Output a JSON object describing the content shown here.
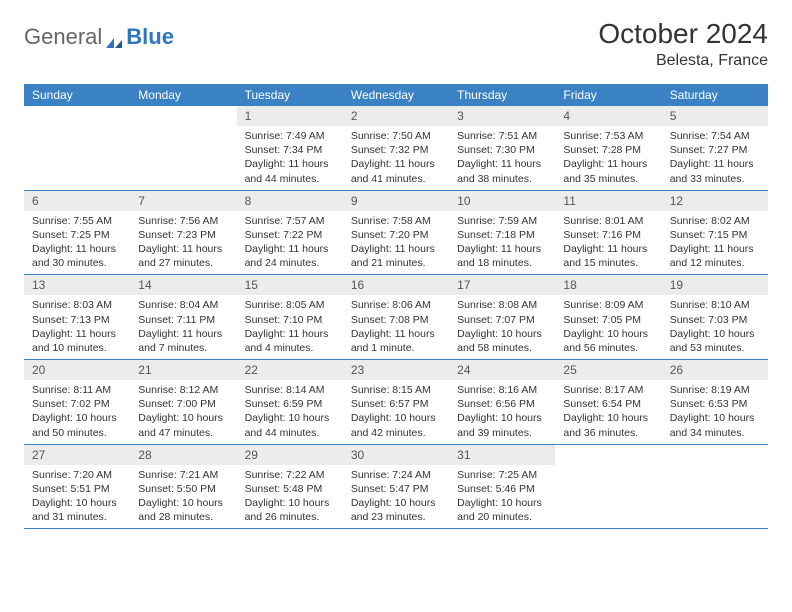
{
  "logo": {
    "text1": "General",
    "text2": "Blue"
  },
  "header": {
    "title": "October 2024",
    "location": "Belesta, France"
  },
  "colors": {
    "header_bar": "#3a82c4",
    "header_text": "#ffffff",
    "daynum_bg": "#ececec",
    "daynum_text": "#555555",
    "body_text": "#333333",
    "logo_gray": "#666666",
    "logo_blue": "#2f77bd",
    "page_bg": "#ffffff"
  },
  "typography": {
    "title_fontsize": 28,
    "subtitle_fontsize": 16,
    "weekday_fontsize": 12,
    "daynum_fontsize": 12,
    "daytext_fontsize": 10.5
  },
  "weekdays": [
    "Sunday",
    "Monday",
    "Tuesday",
    "Wednesday",
    "Thursday",
    "Friday",
    "Saturday"
  ],
  "weeks": [
    [
      null,
      null,
      {
        "n": "1",
        "sr": "Sunrise: 7:49 AM",
        "ss": "Sunset: 7:34 PM",
        "dl": "Daylight: 11 hours and 44 minutes."
      },
      {
        "n": "2",
        "sr": "Sunrise: 7:50 AM",
        "ss": "Sunset: 7:32 PM",
        "dl": "Daylight: 11 hours and 41 minutes."
      },
      {
        "n": "3",
        "sr": "Sunrise: 7:51 AM",
        "ss": "Sunset: 7:30 PM",
        "dl": "Daylight: 11 hours and 38 minutes."
      },
      {
        "n": "4",
        "sr": "Sunrise: 7:53 AM",
        "ss": "Sunset: 7:28 PM",
        "dl": "Daylight: 11 hours and 35 minutes."
      },
      {
        "n": "5",
        "sr": "Sunrise: 7:54 AM",
        "ss": "Sunset: 7:27 PM",
        "dl": "Daylight: 11 hours and 33 minutes."
      }
    ],
    [
      {
        "n": "6",
        "sr": "Sunrise: 7:55 AM",
        "ss": "Sunset: 7:25 PM",
        "dl": "Daylight: 11 hours and 30 minutes."
      },
      {
        "n": "7",
        "sr": "Sunrise: 7:56 AM",
        "ss": "Sunset: 7:23 PM",
        "dl": "Daylight: 11 hours and 27 minutes."
      },
      {
        "n": "8",
        "sr": "Sunrise: 7:57 AM",
        "ss": "Sunset: 7:22 PM",
        "dl": "Daylight: 11 hours and 24 minutes."
      },
      {
        "n": "9",
        "sr": "Sunrise: 7:58 AM",
        "ss": "Sunset: 7:20 PM",
        "dl": "Daylight: 11 hours and 21 minutes."
      },
      {
        "n": "10",
        "sr": "Sunrise: 7:59 AM",
        "ss": "Sunset: 7:18 PM",
        "dl": "Daylight: 11 hours and 18 minutes."
      },
      {
        "n": "11",
        "sr": "Sunrise: 8:01 AM",
        "ss": "Sunset: 7:16 PM",
        "dl": "Daylight: 11 hours and 15 minutes."
      },
      {
        "n": "12",
        "sr": "Sunrise: 8:02 AM",
        "ss": "Sunset: 7:15 PM",
        "dl": "Daylight: 11 hours and 12 minutes."
      }
    ],
    [
      {
        "n": "13",
        "sr": "Sunrise: 8:03 AM",
        "ss": "Sunset: 7:13 PM",
        "dl": "Daylight: 11 hours and 10 minutes."
      },
      {
        "n": "14",
        "sr": "Sunrise: 8:04 AM",
        "ss": "Sunset: 7:11 PM",
        "dl": "Daylight: 11 hours and 7 minutes."
      },
      {
        "n": "15",
        "sr": "Sunrise: 8:05 AM",
        "ss": "Sunset: 7:10 PM",
        "dl": "Daylight: 11 hours and 4 minutes."
      },
      {
        "n": "16",
        "sr": "Sunrise: 8:06 AM",
        "ss": "Sunset: 7:08 PM",
        "dl": "Daylight: 11 hours and 1 minute."
      },
      {
        "n": "17",
        "sr": "Sunrise: 8:08 AM",
        "ss": "Sunset: 7:07 PM",
        "dl": "Daylight: 10 hours and 58 minutes."
      },
      {
        "n": "18",
        "sr": "Sunrise: 8:09 AM",
        "ss": "Sunset: 7:05 PM",
        "dl": "Daylight: 10 hours and 56 minutes."
      },
      {
        "n": "19",
        "sr": "Sunrise: 8:10 AM",
        "ss": "Sunset: 7:03 PM",
        "dl": "Daylight: 10 hours and 53 minutes."
      }
    ],
    [
      {
        "n": "20",
        "sr": "Sunrise: 8:11 AM",
        "ss": "Sunset: 7:02 PM",
        "dl": "Daylight: 10 hours and 50 minutes."
      },
      {
        "n": "21",
        "sr": "Sunrise: 8:12 AM",
        "ss": "Sunset: 7:00 PM",
        "dl": "Daylight: 10 hours and 47 minutes."
      },
      {
        "n": "22",
        "sr": "Sunrise: 8:14 AM",
        "ss": "Sunset: 6:59 PM",
        "dl": "Daylight: 10 hours and 44 minutes."
      },
      {
        "n": "23",
        "sr": "Sunrise: 8:15 AM",
        "ss": "Sunset: 6:57 PM",
        "dl": "Daylight: 10 hours and 42 minutes."
      },
      {
        "n": "24",
        "sr": "Sunrise: 8:16 AM",
        "ss": "Sunset: 6:56 PM",
        "dl": "Daylight: 10 hours and 39 minutes."
      },
      {
        "n": "25",
        "sr": "Sunrise: 8:17 AM",
        "ss": "Sunset: 6:54 PM",
        "dl": "Daylight: 10 hours and 36 minutes."
      },
      {
        "n": "26",
        "sr": "Sunrise: 8:19 AM",
        "ss": "Sunset: 6:53 PM",
        "dl": "Daylight: 10 hours and 34 minutes."
      }
    ],
    [
      {
        "n": "27",
        "sr": "Sunrise: 7:20 AM",
        "ss": "Sunset: 5:51 PM",
        "dl": "Daylight: 10 hours and 31 minutes."
      },
      {
        "n": "28",
        "sr": "Sunrise: 7:21 AM",
        "ss": "Sunset: 5:50 PM",
        "dl": "Daylight: 10 hours and 28 minutes."
      },
      {
        "n": "29",
        "sr": "Sunrise: 7:22 AM",
        "ss": "Sunset: 5:48 PM",
        "dl": "Daylight: 10 hours and 26 minutes."
      },
      {
        "n": "30",
        "sr": "Sunrise: 7:24 AM",
        "ss": "Sunset: 5:47 PM",
        "dl": "Daylight: 10 hours and 23 minutes."
      },
      {
        "n": "31",
        "sr": "Sunrise: 7:25 AM",
        "ss": "Sunset: 5:46 PM",
        "dl": "Daylight: 10 hours and 20 minutes."
      },
      null,
      null
    ]
  ]
}
